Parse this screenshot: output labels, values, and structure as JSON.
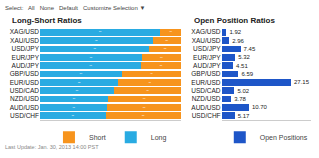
{
  "chart_data": [
    {
      "type": "bar",
      "orientation": "horizontal",
      "stacked": true,
      "title": "Long-Short Ratios",
      "categories": [
        "XAG/USD",
        "XAU/USD",
        "USD/JPY",
        "EUR/JPY",
        "AUD/JPY",
        "GBP/USD",
        "EUR/USD",
        "USD/CAD",
        "NZD/USD",
        "AUD/USD",
        "USD/CHF"
      ],
      "series": [
        {
          "name": "Long",
          "color": "#29abe2",
          "values": [
            85.49,
            79.85,
            77.68,
            72.25,
            71.89,
            58.24,
            55.65,
            52.61,
            48.06,
            47.82,
            46.5
          ],
          "value_labels": [
            "85.49%",
            "79.85%",
            "77.68%",
            "72.25%",
            "71.89%",
            "58.24%",
            "55.65%",
            "52.61%",
            "48.06%",
            "47.82%",
            "46.50%"
          ]
        },
        {
          "name": "Short",
          "color": "#f7941d",
          "values": [
            14.51,
            20.15,
            22.32,
            27.75,
            28.11,
            41.76,
            44.35,
            47.39,
            51.94,
            52.18,
            53.5
          ],
          "value_labels": [
            "14.51%",
            "20.15%",
            "22.32%",
            "27.75%",
            "28.11%",
            "41.76%",
            "44.35%",
            "47.39%",
            "51.94%",
            "52.18%",
            "53.50%"
          ]
        }
      ],
      "xlim": [
        0,
        100
      ],
      "data_labels": true,
      "tick_labels": "y",
      "grid": false,
      "legend": "bottom",
      "annotations": [
        "Select:",
        "All",
        "None",
        "Default",
        "Customize Selection ▼",
        "Last Update: Jan. 30, 2013 14:00 PST"
      ]
    },
    {
      "type": "bar",
      "orientation": "horizontal",
      "title": "Open Position Ratios",
      "categories": [
        "XAG/USD",
        "XAU/USD",
        "USD/JPY",
        "EUR/JPY",
        "AUD/JPY",
        "GBP/USD",
        "EUR/USD",
        "USD/CAD",
        "NZD/USD",
        "AUD/USD",
        "USD/CHF"
      ],
      "series": [
        {
          "name": "Open Positions",
          "color": "#1e56c8",
          "values": [
            1.92,
            2.96,
            7.45,
            5.32,
            4.51,
            6.59,
            27.15,
            5.02,
            3.78,
            10.7,
            5.17
          ],
          "value_labels": [
            "1.92",
            "2.96",
            "7.45",
            "5.32",
            "4.51",
            "6.59",
            "27.15",
            "5.02",
            "3.78",
            "10.70",
            "5.17"
          ]
        }
      ],
      "xlim": [
        0,
        35
      ],
      "data_labels": true,
      "tick_labels": "y",
      "grid": false,
      "legend": "bottom"
    }
  ]
}
